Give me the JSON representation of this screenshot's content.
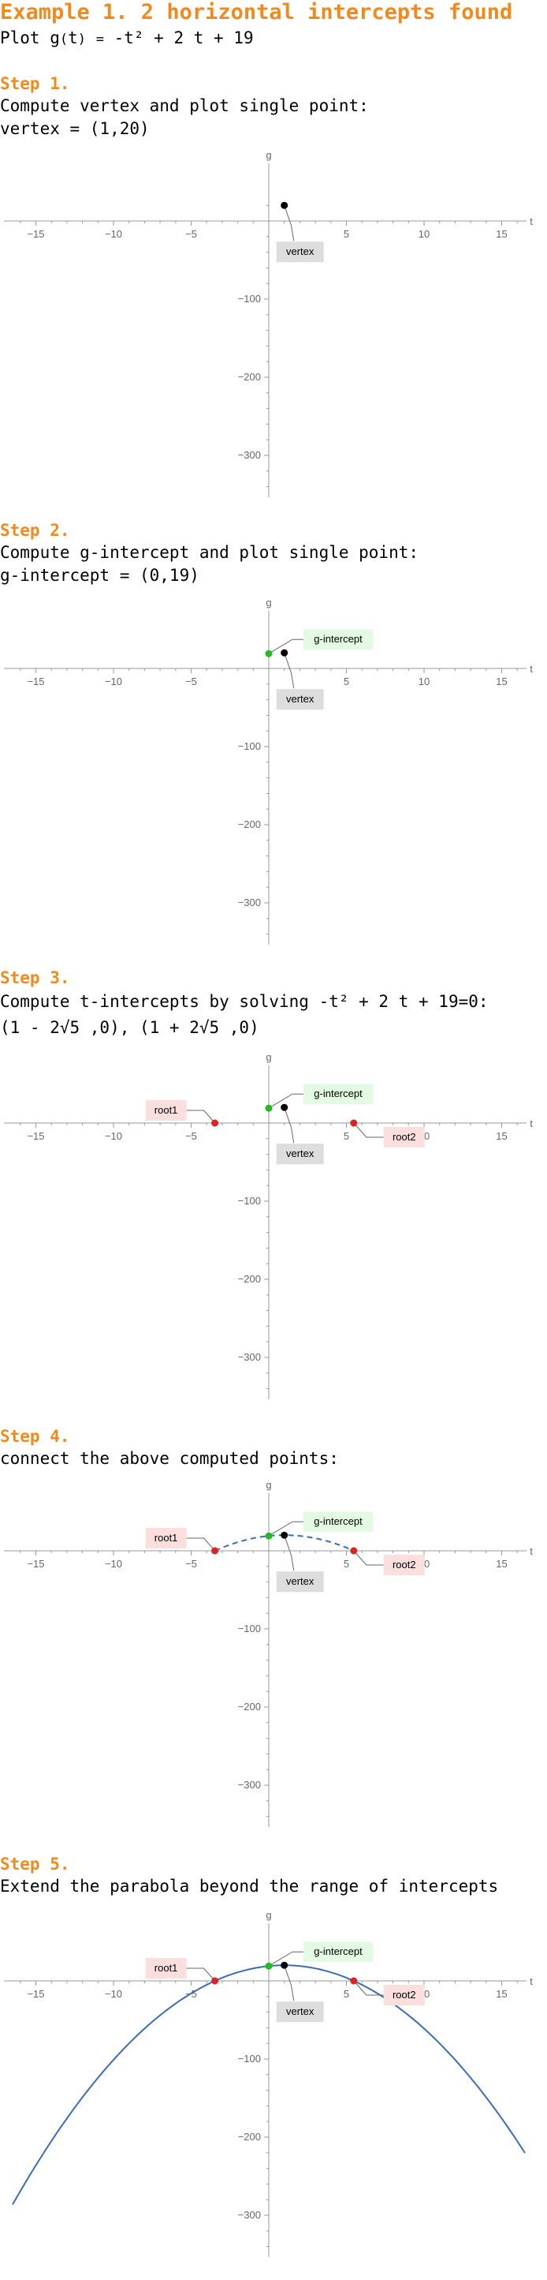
{
  "header": {
    "title": "Example 1. 2 horizontal intercepts found",
    "plot_prefix": "Plot ",
    "function_name": "g",
    "variable": "t",
    "expression": "-t² + 2 t + 19"
  },
  "steps": [
    {
      "heading": "Step 1.",
      "text": "Compute vertex and plot single point:",
      "result": "vertex = (1,20)"
    },
    {
      "heading": "Step 2.",
      "text": "Compute g-intercept and plot single point:",
      "result": "g-intercept = (0,19)"
    },
    {
      "heading": "Step 3.",
      "text": "Compute t-intercepts by solving  -t² + 2 t + 19=0:",
      "result": "(1 - 2√5 ,0),  (1 + 2√5 ,0)"
    },
    {
      "heading": "Step 4.",
      "text": "connect the above computed points:"
    },
    {
      "heading": "Step 5.",
      "text": "Extend the parabola beyond the range of intercepts"
    }
  ],
  "labels": {
    "vertex": "vertex",
    "g_intercept": "g-intercept",
    "root1": "root1",
    "root2": "root2",
    "x_axis": "t",
    "y_axis": "g"
  },
  "colors": {
    "accent": "#f08a1c",
    "vertex_point": "#000000",
    "g_intercept_point": "#22bb22",
    "root_point": "#dd2222",
    "curve": "#3a6db5",
    "vertex_label_bg": "#dddddd",
    "g_intercept_label_bg": "#e3fbe3",
    "root_label_bg": "#fbdede"
  },
  "chart_data": [
    {
      "type": "scatter",
      "step": 1,
      "xlim": [
        -17,
        17
      ],
      "ylim": [
        -350,
        40
      ],
      "x_ticks": [
        -15,
        -10,
        -5,
        5,
        10,
        15
      ],
      "y_ticks": [
        -100,
        -200,
        -300
      ],
      "points": [
        {
          "name": "vertex",
          "x": 1,
          "y": 20
        }
      ]
    },
    {
      "type": "scatter",
      "step": 2,
      "xlim": [
        -17,
        17
      ],
      "ylim": [
        -350,
        40
      ],
      "x_ticks": [
        -15,
        -10,
        -5,
        5,
        10,
        15
      ],
      "y_ticks": [
        -100,
        -200,
        -300
      ],
      "points": [
        {
          "name": "vertex",
          "x": 1,
          "y": 20
        },
        {
          "name": "g-intercept",
          "x": 0,
          "y": 19
        }
      ]
    },
    {
      "type": "scatter",
      "step": 3,
      "xlim": [
        -17,
        17
      ],
      "ylim": [
        -350,
        40
      ],
      "x_ticks": [
        -15,
        -10,
        -5,
        5,
        10,
        15
      ],
      "y_ticks": [
        -100,
        -200,
        -300
      ],
      "points": [
        {
          "name": "vertex",
          "x": 1,
          "y": 20
        },
        {
          "name": "g-intercept",
          "x": 0,
          "y": 19
        },
        {
          "name": "root1",
          "x": -3.472,
          "y": 0
        },
        {
          "name": "root2",
          "x": 5.472,
          "y": 0
        }
      ]
    },
    {
      "type": "line",
      "step": 4,
      "style": "dashed",
      "xlim": [
        -17,
        17
      ],
      "ylim": [
        -350,
        40
      ],
      "x_ticks": [
        -15,
        -10,
        -5,
        5,
        10,
        15
      ],
      "y_ticks": [
        -100,
        -200,
        -300
      ],
      "points": [
        {
          "name": "vertex",
          "x": 1,
          "y": 20
        },
        {
          "name": "g-intercept",
          "x": 0,
          "y": 19
        },
        {
          "name": "root1",
          "x": -3.472,
          "y": 0
        },
        {
          "name": "root2",
          "x": 5.472,
          "y": 0
        }
      ],
      "curve_domain": [
        -3.472,
        5.472
      ]
    },
    {
      "type": "line",
      "step": 5,
      "style": "solid",
      "xlim": [
        -17,
        17
      ],
      "ylim": [
        -350,
        40
      ],
      "x_ticks": [
        -15,
        -10,
        -5,
        5,
        10,
        15
      ],
      "y_ticks": [
        -100,
        -200,
        -300
      ],
      "points": [
        {
          "name": "vertex",
          "x": 1,
          "y": 20
        },
        {
          "name": "g-intercept",
          "x": 0,
          "y": 19
        },
        {
          "name": "root1",
          "x": -3.472,
          "y": 0
        },
        {
          "name": "root2",
          "x": 5.472,
          "y": 0
        }
      ],
      "curve_domain": [
        -16.5,
        16.5
      ]
    }
  ]
}
